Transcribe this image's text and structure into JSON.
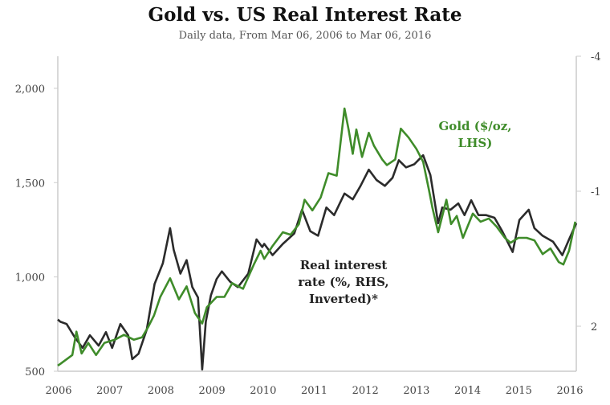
{
  "chart_data": {
    "type": "line",
    "title": "Gold vs. US Real Interest Rate",
    "subtitle": "Daily data, From Mar 06, 2006 to Mar 06, 2016",
    "xlim": [
      2006.18,
      2016.2
    ],
    "x_ticks": [
      "2006",
      "2007",
      "2008",
      "2009",
      "2010",
      "2011",
      "2012",
      "2013",
      "2014",
      "2015",
      "2016"
    ],
    "y_left": {
      "ylim": [
        500,
        2170
      ],
      "ticks": [
        500,
        1000,
        1500,
        2000
      ],
      "tick_labels": [
        "500",
        "1,000",
        "1,500",
        "2,000"
      ]
    },
    "y_right": {
      "ylim": [
        -4,
        3
      ],
      "inverted": true,
      "ticks": [
        -4,
        -1,
        2
      ],
      "tick_labels": [
        "-4",
        "-1",
        "2"
      ]
    },
    "grid": false,
    "annotations": {
      "gold": [
        "Gold ($/oz,",
        "LHS)"
      ],
      "rate": [
        "Real interest",
        "rate (%, RHS,",
        "Inverted)*"
      ]
    },
    "colors": {
      "gold": "#3f8c2a",
      "rate": "#2b2b2b",
      "axis": "#cccccc"
    },
    "series": [
      {
        "key": "gold",
        "axis": "left",
        "points": [
          [
            2006.18,
            530
          ],
          [
            2006.23,
            539
          ],
          [
            2006.46,
            586
          ],
          [
            2006.54,
            710
          ],
          [
            2006.64,
            594
          ],
          [
            2006.77,
            650
          ],
          [
            2006.92,
            586
          ],
          [
            2007.08,
            650
          ],
          [
            2007.28,
            667
          ],
          [
            2007.46,
            693
          ],
          [
            2007.65,
            667
          ],
          [
            2007.81,
            680
          ],
          [
            2007.93,
            736
          ],
          [
            2008.04,
            796
          ],
          [
            2008.16,
            894
          ],
          [
            2008.35,
            993
          ],
          [
            2008.52,
            881
          ],
          [
            2008.67,
            950
          ],
          [
            2008.83,
            809
          ],
          [
            2008.97,
            753
          ],
          [
            2009.06,
            839
          ],
          [
            2009.25,
            894
          ],
          [
            2009.4,
            894
          ],
          [
            2009.55,
            967
          ],
          [
            2009.76,
            937
          ],
          [
            2009.97,
            1066
          ],
          [
            2010.1,
            1139
          ],
          [
            2010.17,
            1096
          ],
          [
            2010.33,
            1164
          ],
          [
            2010.53,
            1237
          ],
          [
            2010.68,
            1224
          ],
          [
            2010.84,
            1280
          ],
          [
            2010.95,
            1409
          ],
          [
            2011.1,
            1353
          ],
          [
            2011.26,
            1421
          ],
          [
            2011.41,
            1550
          ],
          [
            2011.57,
            1537
          ],
          [
            2011.72,
            1893
          ],
          [
            2011.8,
            1782
          ],
          [
            2011.88,
            1653
          ],
          [
            2011.95,
            1782
          ],
          [
            2012.06,
            1636
          ],
          [
            2012.19,
            1764
          ],
          [
            2012.29,
            1696
          ],
          [
            2012.45,
            1623
          ],
          [
            2012.54,
            1593
          ],
          [
            2012.7,
            1623
          ],
          [
            2012.81,
            1786
          ],
          [
            2012.96,
            1739
          ],
          [
            2013.11,
            1679
          ],
          [
            2013.24,
            1610
          ],
          [
            2013.35,
            1464
          ],
          [
            2013.42,
            1366
          ],
          [
            2013.53,
            1237
          ],
          [
            2013.69,
            1409
          ],
          [
            2013.78,
            1280
          ],
          [
            2013.89,
            1323
          ],
          [
            2014.01,
            1207
          ],
          [
            2014.2,
            1336
          ],
          [
            2014.35,
            1293
          ],
          [
            2014.51,
            1310
          ],
          [
            2014.66,
            1267
          ],
          [
            2014.82,
            1207
          ],
          [
            2014.93,
            1181
          ],
          [
            2015.08,
            1207
          ],
          [
            2015.24,
            1207
          ],
          [
            2015.39,
            1194
          ],
          [
            2015.55,
            1121
          ],
          [
            2015.7,
            1151
          ],
          [
            2015.86,
            1079
          ],
          [
            2015.95,
            1066
          ],
          [
            2016.06,
            1139
          ],
          [
            2016.18,
            1293
          ]
        ]
      },
      {
        "key": "rate",
        "axis": "right",
        "points": [
          [
            2006.18,
            1.85
          ],
          [
            2006.23,
            1.9
          ],
          [
            2006.35,
            1.95
          ],
          [
            2006.51,
            2.25
          ],
          [
            2006.66,
            2.48
          ],
          [
            2006.8,
            2.2
          ],
          [
            2006.97,
            2.43
          ],
          [
            2007.11,
            2.13
          ],
          [
            2007.23,
            2.48
          ],
          [
            2007.39,
            1.95
          ],
          [
            2007.54,
            2.2
          ],
          [
            2007.62,
            2.73
          ],
          [
            2007.74,
            2.61
          ],
          [
            2007.9,
            2.07
          ],
          [
            2008.05,
            1.06
          ],
          [
            2008.21,
            0.6
          ],
          [
            2008.35,
            -0.18
          ],
          [
            2008.42,
            0.3
          ],
          [
            2008.55,
            0.83
          ],
          [
            2008.67,
            0.53
          ],
          [
            2008.78,
            1.13
          ],
          [
            2008.89,
            1.36
          ],
          [
            2008.97,
            2.96
          ],
          [
            2009.04,
            1.9
          ],
          [
            2009.14,
            1.31
          ],
          [
            2009.25,
            0.95
          ],
          [
            2009.35,
            0.78
          ],
          [
            2009.51,
            1.01
          ],
          [
            2009.66,
            1.13
          ],
          [
            2009.86,
            0.83
          ],
          [
            2010.02,
            0.07
          ],
          [
            2010.13,
            0.24
          ],
          [
            2010.17,
            0.17
          ],
          [
            2010.33,
            0.42
          ],
          [
            2010.53,
            0.17
          ],
          [
            2010.75,
            -0.06
          ],
          [
            2010.9,
            -0.59
          ],
          [
            2011.06,
            -0.11
          ],
          [
            2011.21,
            -0.01
          ],
          [
            2011.37,
            -0.64
          ],
          [
            2011.52,
            -0.47
          ],
          [
            2011.72,
            -0.95
          ],
          [
            2011.88,
            -0.82
          ],
          [
            2012.03,
            -1.12
          ],
          [
            2012.19,
            -1.48
          ],
          [
            2012.34,
            -1.25
          ],
          [
            2012.5,
            -1.12
          ],
          [
            2012.65,
            -1.3
          ],
          [
            2012.77,
            -1.69
          ],
          [
            2012.91,
            -1.53
          ],
          [
            2013.07,
            -1.6
          ],
          [
            2013.24,
            -1.8
          ],
          [
            2013.38,
            -1.36
          ],
          [
            2013.47,
            -0.72
          ],
          [
            2013.53,
            -0.29
          ],
          [
            2013.61,
            -0.64
          ],
          [
            2013.77,
            -0.59
          ],
          [
            2013.92,
            -0.73
          ],
          [
            2014.04,
            -0.47
          ],
          [
            2014.17,
            -0.8
          ],
          [
            2014.31,
            -0.47
          ],
          [
            2014.46,
            -0.47
          ],
          [
            2014.62,
            -0.41
          ],
          [
            2014.77,
            -0.11
          ],
          [
            2014.97,
            0.35
          ],
          [
            2015.1,
            -0.36
          ],
          [
            2015.28,
            -0.59
          ],
          [
            2015.39,
            -0.18
          ],
          [
            2015.55,
            -0.01
          ],
          [
            2015.75,
            0.12
          ],
          [
            2015.93,
            0.42
          ],
          [
            2016.06,
            0.07
          ],
          [
            2016.2,
            -0.29
          ]
        ]
      }
    ]
  }
}
